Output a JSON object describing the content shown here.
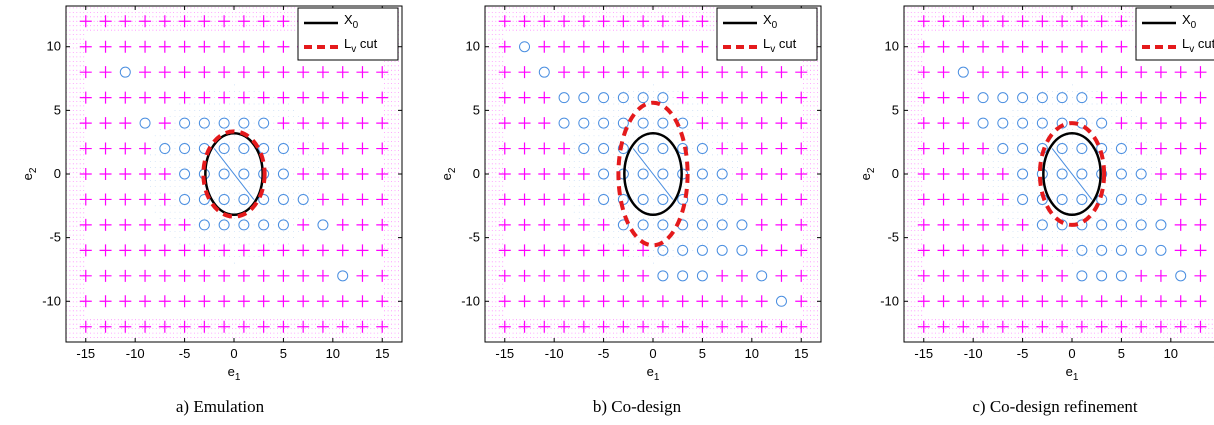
{
  "colors": {
    "cross": "#ff00ff",
    "circle": "#4a8ee0",
    "x0": "#000000",
    "lv": "#e41a1c"
  },
  "chart_data": [
    {
      "type": "scatter",
      "caption": "a) Emulation",
      "xlabel_main": "e",
      "xlabel_sub": "1",
      "ylabel_main": "e",
      "ylabel_sub": "2",
      "xlim": [
        -17,
        17
      ],
      "ylim": [
        -13.2,
        13.2
      ],
      "xticks": [
        -15,
        -10,
        -5,
        0,
        5,
        10,
        15
      ],
      "yticks": [
        -10,
        -5,
        0,
        5,
        10
      ],
      "legend": [
        {
          "main": "X",
          "sub": "0",
          "style": "solid"
        },
        {
          "main": "L",
          "sub": "v",
          "suffix": " cut",
          "style": "dashed"
        }
      ],
      "legend_position": "top-right",
      "grid_step": 2,
      "grid_range": [
        -15,
        15,
        -12,
        12
      ],
      "circles": [
        [
          -11,
          8
        ],
        [
          -9,
          4
        ],
        [
          -7,
          2
        ],
        [
          -5,
          4
        ],
        [
          -5,
          2
        ],
        [
          -5,
          0
        ],
        [
          -5,
          -2
        ],
        [
          -3,
          4
        ],
        [
          -3,
          2
        ],
        [
          -3,
          0
        ],
        [
          -3,
          -2
        ],
        [
          -3,
          -4
        ],
        [
          -1,
          4
        ],
        [
          -1,
          2
        ],
        [
          -1,
          0
        ],
        [
          -1,
          -2
        ],
        [
          -1,
          -4
        ],
        [
          1,
          4
        ],
        [
          1,
          2
        ],
        [
          1,
          0
        ],
        [
          1,
          -2
        ],
        [
          1,
          -4
        ],
        [
          3,
          4
        ],
        [
          3,
          2
        ],
        [
          3,
          0
        ],
        [
          3,
          -2
        ],
        [
          3,
          -4
        ],
        [
          5,
          2
        ],
        [
          5,
          0
        ],
        [
          5,
          -2
        ],
        [
          5,
          -4
        ],
        [
          7,
          -2
        ],
        [
          9,
          -4
        ],
        [
          11,
          -8
        ]
      ],
      "x0_ellipse": {
        "cx": 0,
        "cy": 0,
        "rx": 2.9,
        "ry": 3.2
      },
      "lv_ellipse": {
        "cx": 0,
        "cy": 0,
        "rx": 3.1,
        "ry": 3.35
      }
    },
    {
      "type": "scatter",
      "caption": "b) Co-design",
      "xlabel_main": "e",
      "xlabel_sub": "1",
      "ylabel_main": "e",
      "ylabel_sub": "2",
      "xlim": [
        -17,
        17
      ],
      "ylim": [
        -13.2,
        13.2
      ],
      "xticks": [
        -15,
        -10,
        -5,
        0,
        5,
        10,
        15
      ],
      "yticks": [
        -10,
        -5,
        0,
        5,
        10
      ],
      "legend": [
        {
          "main": "X",
          "sub": "0",
          "style": "solid"
        },
        {
          "main": "L",
          "sub": "v",
          "suffix": " cut",
          "style": "dashed"
        }
      ],
      "legend_position": "top-right",
      "grid_step": 2,
      "grid_range": [
        -15,
        15,
        -12,
        12
      ],
      "circles": [
        [
          -13,
          10
        ],
        [
          -11,
          8
        ],
        [
          -9,
          6
        ],
        [
          -9,
          4
        ],
        [
          -7,
          6
        ],
        [
          -7,
          4
        ],
        [
          -7,
          2
        ],
        [
          -5,
          6
        ],
        [
          -5,
          4
        ],
        [
          -5,
          2
        ],
        [
          -5,
          0
        ],
        [
          -5,
          -2
        ],
        [
          -3,
          6
        ],
        [
          -3,
          4
        ],
        [
          -3,
          2
        ],
        [
          -3,
          0
        ],
        [
          -3,
          -2
        ],
        [
          -3,
          -4
        ],
        [
          -1,
          6
        ],
        [
          -1,
          4
        ],
        [
          -1,
          2
        ],
        [
          -1,
          0
        ],
        [
          -1,
          -2
        ],
        [
          -1,
          -4
        ],
        [
          1,
          6
        ],
        [
          1,
          4
        ],
        [
          1,
          2
        ],
        [
          1,
          0
        ],
        [
          1,
          -2
        ],
        [
          1,
          -4
        ],
        [
          1,
          -6
        ],
        [
          1,
          -8
        ],
        [
          3,
          4
        ],
        [
          3,
          2
        ],
        [
          3,
          0
        ],
        [
          3,
          -2
        ],
        [
          3,
          -4
        ],
        [
          3,
          -6
        ],
        [
          3,
          -8
        ],
        [
          5,
          2
        ],
        [
          5,
          0
        ],
        [
          5,
          -2
        ],
        [
          5,
          -4
        ],
        [
          5,
          -6
        ],
        [
          5,
          -8
        ],
        [
          7,
          0
        ],
        [
          7,
          -2
        ],
        [
          7,
          -4
        ],
        [
          7,
          -6
        ],
        [
          9,
          -4
        ],
        [
          9,
          -6
        ],
        [
          11,
          -8
        ],
        [
          13,
          -10
        ]
      ],
      "x0_ellipse": {
        "cx": 0,
        "cy": 0,
        "rx": 2.9,
        "ry": 3.2
      },
      "lv_ellipse": {
        "cx": 0,
        "cy": 0,
        "rx": 3.5,
        "ry": 5.6
      }
    },
    {
      "type": "scatter",
      "caption": "c) Co-design refinement",
      "xlabel_main": "e",
      "xlabel_sub": "1",
      "ylabel_main": "e",
      "ylabel_sub": "2",
      "xlim": [
        -17,
        17
      ],
      "ylim": [
        -13.2,
        13.2
      ],
      "xticks": [
        -15,
        -10,
        -5,
        0,
        5,
        10,
        15
      ],
      "yticks": [
        -10,
        -5,
        0,
        5,
        10
      ],
      "legend": [
        {
          "main": "X",
          "sub": "0",
          "style": "solid"
        },
        {
          "main": "L",
          "sub": "v",
          "suffix": " cut",
          "style": "dashed"
        }
      ],
      "legend_position": "top-right",
      "grid_step": 2,
      "grid_range": [
        -15,
        15,
        -12,
        12
      ],
      "circles": [
        [
          -11,
          8
        ],
        [
          -9,
          6
        ],
        [
          -9,
          4
        ],
        [
          -7,
          6
        ],
        [
          -7,
          4
        ],
        [
          -7,
          2
        ],
        [
          -5,
          6
        ],
        [
          -5,
          4
        ],
        [
          -5,
          2
        ],
        [
          -5,
          0
        ],
        [
          -5,
          -2
        ],
        [
          -3,
          6
        ],
        [
          -3,
          4
        ],
        [
          -3,
          2
        ],
        [
          -3,
          0
        ],
        [
          -3,
          -2
        ],
        [
          -3,
          -4
        ],
        [
          -1,
          6
        ],
        [
          -1,
          4
        ],
        [
          -1,
          2
        ],
        [
          -1,
          0
        ],
        [
          -1,
          -2
        ],
        [
          -1,
          -4
        ],
        [
          1,
          6
        ],
        [
          1,
          4
        ],
        [
          1,
          2
        ],
        [
          1,
          0
        ],
        [
          1,
          -2
        ],
        [
          1,
          -4
        ],
        [
          1,
          -6
        ],
        [
          1,
          -8
        ],
        [
          3,
          4
        ],
        [
          3,
          2
        ],
        [
          3,
          0
        ],
        [
          3,
          -2
        ],
        [
          3,
          -4
        ],
        [
          3,
          -6
        ],
        [
          3,
          -8
        ],
        [
          5,
          2
        ],
        [
          5,
          0
        ],
        [
          5,
          -2
        ],
        [
          5,
          -4
        ],
        [
          5,
          -6
        ],
        [
          5,
          -8
        ],
        [
          7,
          0
        ],
        [
          7,
          -2
        ],
        [
          7,
          -4
        ],
        [
          7,
          -6
        ],
        [
          9,
          -4
        ],
        [
          9,
          -6
        ],
        [
          11,
          -8
        ]
      ],
      "x0_ellipse": {
        "cx": 0,
        "cy": 0,
        "rx": 2.9,
        "ry": 3.2
      },
      "lv_ellipse": {
        "cx": 0,
        "cy": 0,
        "rx": 3.25,
        "ry": 4.0
      }
    }
  ]
}
